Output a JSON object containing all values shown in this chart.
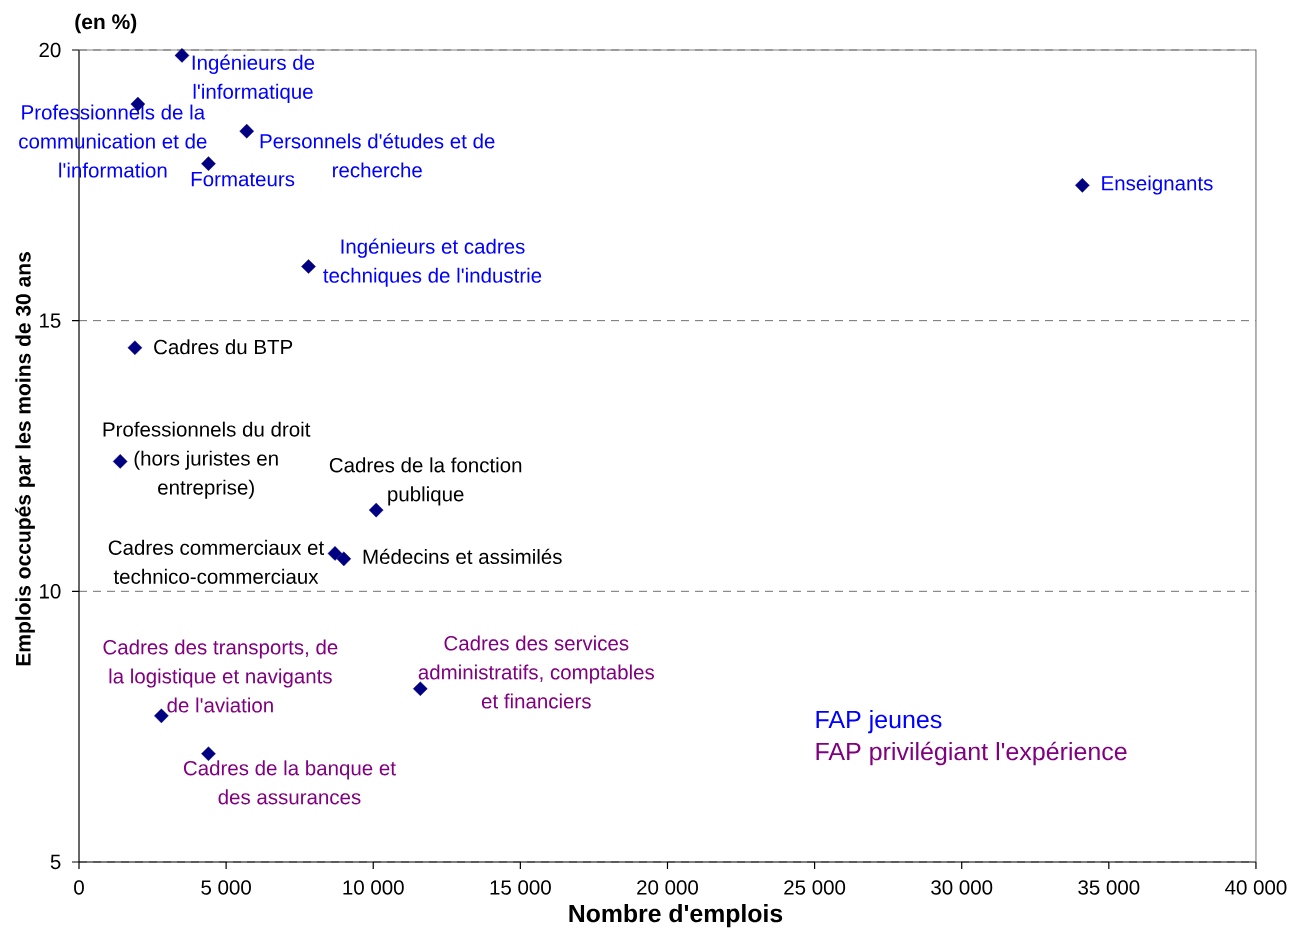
{
  "chart_data": {
    "type": "scatter",
    "xlabel": "Nombre d'emplois",
    "ylabel": "Emplois occupés par les moins de 30 ans",
    "xlim": [
      0,
      40000
    ],
    "ylim": [
      5,
      20
    ],
    "xticks": [
      0,
      {
        "value": 5000,
        "label": "5 000"
      },
      {
        "value": 10000,
        "label": "10 000"
      },
      {
        "value": 15000,
        "label": "15 000"
      },
      {
        "value": 20000,
        "label": "20 000"
      },
      {
        "value": 25000,
        "label": "25 000"
      },
      {
        "value": 30000,
        "label": "30 000"
      },
      {
        "value": 35000,
        "label": "35 000"
      },
      {
        "value": 40000,
        "label": "40 000"
      }
    ],
    "yticks": [
      5,
      10,
      15,
      20
    ],
    "grid": "y",
    "marker": "diamond",
    "legend": "bottom right",
    "series": [
      {
        "name": "FAP jeunes",
        "color": "#000080",
        "x": [
          3500,
          2000,
          5700,
          4400,
          34100,
          7800
        ],
        "values": [
          19.9,
          19.0,
          18.5,
          17.9,
          17.5,
          16.0
        ]
      },
      {
        "name": "FAP privilégiant l'expérience",
        "color": "#000080",
        "x": [
          11600,
          2800,
          4400
        ],
        "values": [
          8.2,
          7.7,
          7.0
        ]
      },
      {
        "color": "#000080",
        "x": [
          1900,
          1400,
          10100,
          8700,
          9000
        ],
        "values": [
          14.5,
          12.4,
          11.5,
          10.7,
          10.6
        ]
      }
    ],
    "annotations": [
      "(en %)",
      {
        "text": "Ingénieurs de l'informatique",
        "x": 3500,
        "y": 19.9
      },
      {
        "text": "Professionnels de la communication et de l'information",
        "x": 2000,
        "y": 19.0
      },
      {
        "text": "Personnels d'études et de recherche",
        "x": 5700,
        "y": 18.5
      },
      {
        "text": "Formateurs",
        "x": 4400,
        "y": 17.9
      },
      {
        "text": "Enseignants",
        "x": 34100,
        "y": 17.5
      },
      {
        "text": "Ingénieurs et cadres techniques de l'industrie",
        "x": 7800,
        "y": 16.0
      },
      {
        "text": "Cadres des services administratifs, comptables et financiers",
        "x": 11600,
        "y": 8.2
      },
      {
        "text": "Cadres des transports, de la logistique et navigants de l'aviation",
        "x": 2800,
        "y": 7.7
      },
      {
        "text": "Cadres de la banque et des assurances",
        "x": 4400,
        "y": 7.0
      },
      {
        "text": "Cadres du BTP",
        "x": 1900,
        "y": 14.5
      },
      {
        "text": "Professionnels du droit (hors juristes en entreprise)",
        "x": 1400,
        "y": 12.4
      },
      {
        "text": "Cadres de la fonction publique",
        "x": 10100,
        "y": 11.5
      },
      {
        "text": "Cadres commerciaux et technico-commerciaux",
        "x": 8700,
        "y": 10.7
      },
      {
        "text": "Médecins et assimilés",
        "x": 9000,
        "y": 10.6
      }
    ]
  }
}
